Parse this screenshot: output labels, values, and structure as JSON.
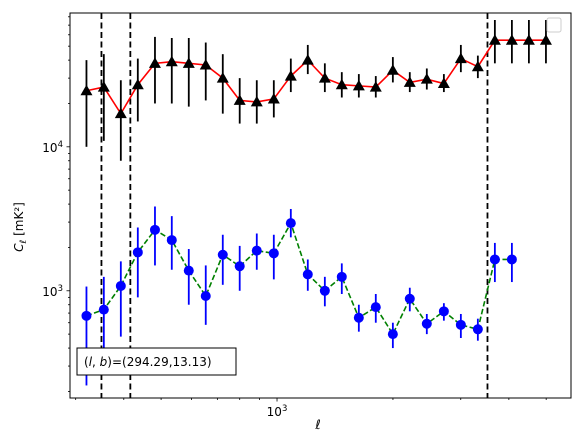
{
  "chart_data": {
    "type": "line",
    "xlabel": "ℓ",
    "ylabel": "C_ℓ [mK²]",
    "xscale": "log",
    "yscale": "log",
    "xlim": [
      290,
      5800
    ],
    "ylim": [
      180,
      85000
    ],
    "x_tick_labels": [
      {
        "value": 1000,
        "base": "10",
        "exp": "3"
      }
    ],
    "y_tick_labels": [
      {
        "value": 1000,
        "base": "10",
        "exp": "3"
      },
      {
        "value": 10000,
        "base": "10",
        "exp": "4"
      }
    ],
    "legend": {
      "placement": "top-right",
      "entries": []
    },
    "vertical_lines": [
      350,
      416,
      3520
    ],
    "annotation": "(l, b)=(294.29,13.13)",
    "series": [
      {
        "marker": "triangle",
        "color": "#000000",
        "line_color": "#ff0000",
        "line_style": "solid",
        "x": [
          320,
          355,
          393,
          435,
          482,
          533,
          590,
          653,
          723,
          800,
          886,
          981,
          1086,
          1202,
          1331,
          1473,
          1631,
          1805,
          1999,
          2212,
          2449,
          2712,
          3002,
          3323,
          3679,
          4073,
          4509,
          4993
        ],
        "y": [
          24500,
          26000,
          17000,
          27000,
          38000,
          39000,
          38000,
          37000,
          30000,
          21000,
          20500,
          21500,
          31000,
          40000,
          30000,
          27000,
          26500,
          26000,
          34000,
          28000,
          29500,
          27500,
          41000,
          36000,
          55000,
          55000,
          55000,
          55000
        ],
        "err_low": [
          10000,
          11000,
          8000,
          15000,
          20000,
          20000,
          19000,
          21000,
          17000,
          14500,
          14500,
          16000,
          24000,
          32000,
          24000,
          22000,
          22000,
          22000,
          28000,
          24000,
          25000,
          24000,
          33000,
          30000,
          38000,
          38000,
          38000,
          38000
        ],
        "err_high": [
          40000,
          44000,
          29000,
          41000,
          58000,
          57000,
          57000,
          53000,
          44000,
          30000,
          29000,
          29000,
          41000,
          51000,
          38000,
          33000,
          32000,
          31000,
          42000,
          33000,
          35000,
          32000,
          51000,
          43000,
          76000,
          76000,
          76000,
          76000
        ]
      },
      {
        "marker": "circle",
        "color": "#0000ff",
        "line_color": "#008000",
        "line_style": "dashed",
        "x": [
          320,
          355,
          393,
          435,
          482,
          533,
          590,
          653,
          723,
          800,
          886,
          981,
          1086,
          1202,
          1331,
          1473,
          1631,
          1805,
          1999,
          2212,
          2449,
          2712,
          3002,
          3323,
          3679,
          4073
        ],
        "y": [
          670,
          740,
          1080,
          1850,
          2650,
          2250,
          1380,
          920,
          1780,
          1480,
          1900,
          1820,
          2950,
          1300,
          1000,
          1250,
          650,
          770,
          500,
          880,
          590,
          720,
          580,
          540,
          1650,
          1650
        ],
        "err_low": [
          220,
          400,
          480,
          900,
          1500,
          1400,
          800,
          580,
          1100,
          1000,
          1400,
          1200,
          2350,
          1000,
          780,
          950,
          520,
          600,
          400,
          720,
          500,
          620,
          470,
          450,
          1150,
          1150
        ],
        "err_high": [
          1070,
          1250,
          1600,
          2750,
          3850,
          3300,
          1950,
          1500,
          2450,
          2050,
          2500,
          2450,
          3700,
          1650,
          1250,
          1550,
          800,
          950,
          600,
          1050,
          690,
          820,
          690,
          640,
          2150,
          2150
        ]
      }
    ]
  }
}
